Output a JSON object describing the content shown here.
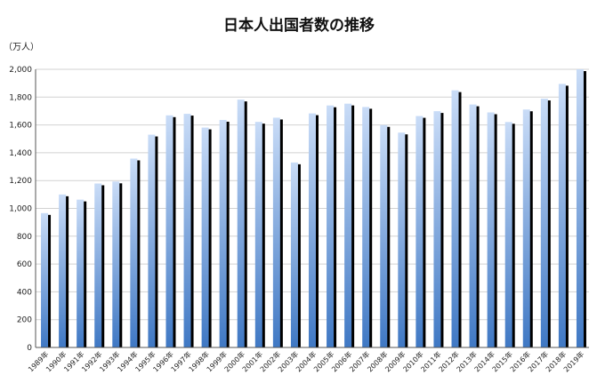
{
  "chart_data": {
    "type": "bar",
    "title": "日本人出国者数の推移",
    "unit_label": "（万人）",
    "xlabel": "",
    "ylabel": "",
    "ylim": [
      0,
      2000
    ],
    "yticks": [
      "0",
      "200",
      "400",
      "600",
      "800",
      "1,000",
      "1,200",
      "1,400",
      "1,600",
      "1,800",
      "2,000"
    ],
    "grid": true,
    "legend": "none",
    "categories": [
      "1989年",
      "1990年",
      "1991年",
      "1992年",
      "1993年",
      "1994年",
      "1995年",
      "1996年",
      "1997年",
      "1998年",
      "1999年",
      "2000年",
      "2001年",
      "2002年",
      "2003年",
      "2004年",
      "2005年",
      "2006年",
      "2007年",
      "2008年",
      "2009年",
      "2010年",
      "2011年",
      "2012年",
      "2013年",
      "2014年",
      "2015年",
      "2016年",
      "2017年",
      "2018年",
      "2019年"
    ],
    "values": [
      966,
      1100,
      1063,
      1179,
      1193,
      1358,
      1530,
      1669,
      1680,
      1581,
      1636,
      1782,
      1622,
      1652,
      1330,
      1683,
      1740,
      1753,
      1729,
      1599,
      1545,
      1664,
      1699,
      1849,
      1747,
      1690,
      1621,
      1711,
      1789,
      1895,
      2008
    ],
    "colors": {
      "bar_top": "#c9dcf7",
      "bar_bottom": "#3f78c4",
      "bar_shadow": "#000000"
    }
  }
}
